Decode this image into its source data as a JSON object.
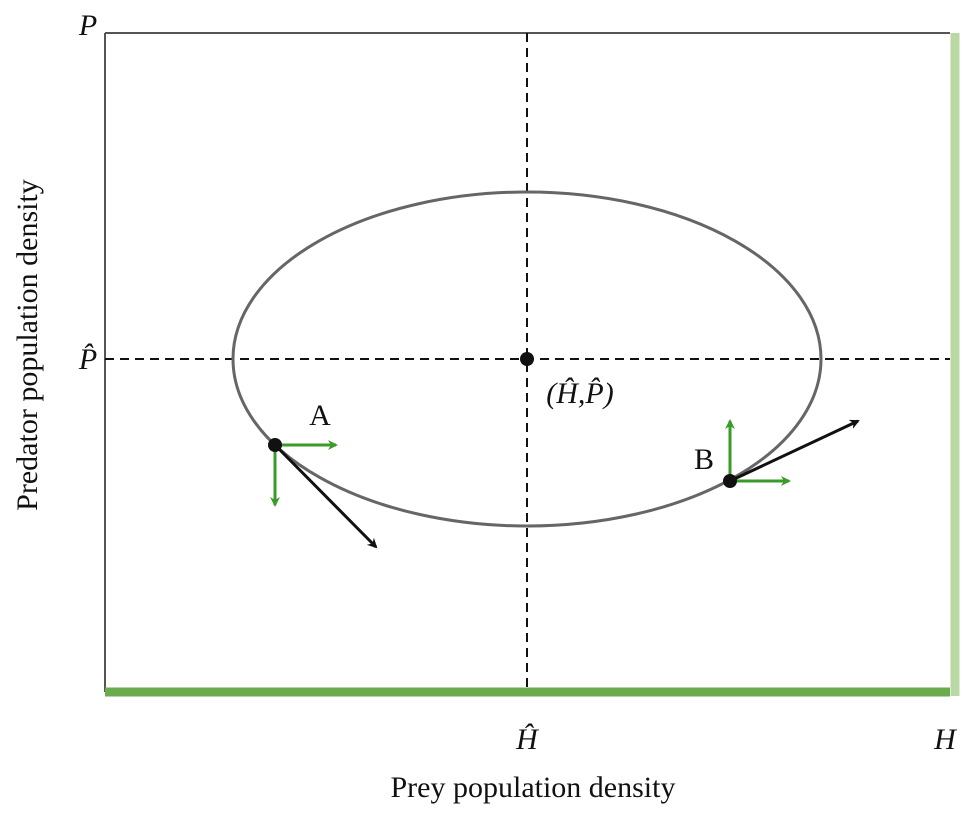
{
  "axes": {
    "y_top_label": "P",
    "y_mid_label": "P̂",
    "x_mid_label": "Ĥ",
    "x_end_label": "H",
    "x_title": "Prey population density",
    "y_title": "Predator population density"
  },
  "equilibrium": {
    "label": "(Ĥ,P̂)"
  },
  "points": [
    {
      "label": "A"
    },
    {
      "label": "B"
    }
  ]
}
